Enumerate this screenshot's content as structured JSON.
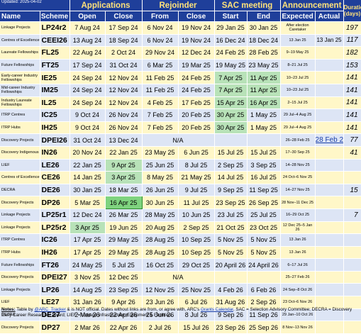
{
  "header": {
    "updated": "Updated: 2025-04-02",
    "groups": {
      "applications": "Applications",
      "rejoinder": "Rejoinder",
      "sac": "SAC meeting",
      "announcement": "Announcement",
      "duration": "Duration (days)"
    },
    "cols": {
      "name": "Name",
      "scheme": "Scheme",
      "open": "Open",
      "close": "Close",
      "rej_from": "From",
      "rej_close": "Close",
      "start": "Start",
      "end": "End",
      "expected": "Expected",
      "actual": "Actual"
    }
  },
  "rows": [
    {
      "name": "Linkage Projects",
      "scheme": "LP24r2",
      "open": "7 Aug 24",
      "close": "17 Sep 24",
      "rf": "6 Nov 24",
      "rc": "19 Nov 24",
      "ss": "29 Jan 25",
      "se": "30 Jan 25",
      "exp": "After election Caretaker",
      "act": "",
      "dur": "197"
    },
    {
      "name": "Centres of Excellence",
      "scheme": "CEEI26",
      "open": "13 Aug 24",
      "close": "18 Sep 24",
      "rf": "6 Nov 24",
      "rc": "19 Nov 24",
      "ss": "16 Dec 24",
      "se": "18 Dec 24",
      "exp": "13 Jan 25",
      "act": "13 Jan 25",
      "dur": "117"
    },
    {
      "name": "Laureate Fellowships",
      "scheme": "FL25",
      "open": "22 Aug 24",
      "close": "2 Oct 24",
      "rf": "29 Nov 24",
      "rc": "12 Dec 24",
      "ss": "24 Feb 25",
      "se": "28 Feb 25",
      "exp": "9–19 May 25",
      "act": "",
      "dur": "182"
    },
    {
      "name": "Future Fellowships",
      "scheme": "FT25",
      "open": "17 Sep 24",
      "close": "31 Oct 24",
      "rf": "6 Mar 25",
      "rc": "19 Mar 25",
      "ss": "19 May 25",
      "se": "23 May 25",
      "exp": "8–21 Jul 25",
      "act": "",
      "dur": "153"
    },
    {
      "name": "Early-career Industry Fellowships",
      "scheme": "IE25",
      "open": "24 Sep 24",
      "close": "12 Nov 24",
      "rf": "11 Feb 25",
      "rc": "24 Feb 25",
      "ss": "7 Apr 25",
      "se": "11 Apr 25",
      "exp": "10–23 Jul 25",
      "act": "",
      "dur": "141"
    },
    {
      "name": "Mid-career Industry Fellowships",
      "scheme": "IM25",
      "open": "24 Sep 24",
      "close": "12 Nov 24",
      "rf": "11 Feb 25",
      "rc": "24 Feb 25",
      "ss": "7 Apr 25",
      "se": "11 Apr 25",
      "exp": "10–23 Jul 25",
      "act": "",
      "dur": "141"
    },
    {
      "name": "Industry Laureate Fellowships",
      "scheme": "IL25",
      "open": "24 Sep 24",
      "close": "12 Nov 24",
      "rf": "4 Feb 25",
      "rc": "17 Feb 25",
      "ss": "15 Apr 25",
      "se": "16 Apr 25",
      "exp": "2–15 Jul 25",
      "act": "",
      "dur": "141"
    },
    {
      "name": "ITRP Centres",
      "scheme": "IC25",
      "open": "9 Oct 24",
      "close": "26 Nov 24",
      "rf": "7 Feb 25",
      "rc": "20 Feb 25",
      "ss": "30 Apr 25",
      "se": "1 May 25",
      "exp": "29 Jul–4 Aug 25",
      "act": "",
      "dur": "141"
    },
    {
      "name": "ITRP Hubs",
      "scheme": "IH25",
      "open": "9 Oct 24",
      "close": "26 Nov 24",
      "rf": "7 Feb 25",
      "rc": "20 Feb 25",
      "ss": "30 Apr 25",
      "se": "1 May 25",
      "exp": "29 Jul–4 Aug 25",
      "act": "",
      "dur": "141"
    },
    {
      "name": "Discovery Projects",
      "scheme": "DPEI26",
      "open": "31 Oct 24",
      "close": "13 Dec 24",
      "rejna": "N/A",
      "ss": "",
      "se": "",
      "exp": "26–28 Feb 25",
      "act": "28 Feb 25",
      "dur": "77"
    },
    {
      "name": "Discovery Indigenous",
      "scheme": "IN26",
      "open": "20 Nov 24",
      "close": "22 Jan 25",
      "rf": "23 May 25",
      "rc": "6 Jun 25",
      "ss": "15 Jul 25",
      "se": "15 Jul 25",
      "exp": "17–30 Sep 25",
      "act": "",
      "dur": "41"
    },
    {
      "name": "LIEF",
      "scheme": "LE26",
      "open": "22 Jan 25",
      "close": "9 Apr 25",
      "rf": "25 Jun 25",
      "rc": "8 Jul 25",
      "ss": "2 Sep 25",
      "se": "3 Sep 25",
      "exp": "14–28 Nov 25",
      "act": "",
      "dur": ""
    },
    {
      "name": "Centres of Excellence",
      "scheme": "CE26",
      "open": "14 Jan 25",
      "close": "3 Apr 25",
      "rf": "8 May 25",
      "rc": "21 May 25",
      "ss": "14 Jul 25",
      "se": "16 Jul 25",
      "exp": "24 Oct–6 Nov 25",
      "act": "",
      "dur": ""
    },
    {
      "name": "DECRA",
      "scheme": "DE26",
      "open": "30 Jan 25",
      "close": "18 Mar 25",
      "rf": "26 Jun 25",
      "rc": "9 Jul 25",
      "ss": "9 Sep 25",
      "se": "11 Sep 25",
      "exp": "14–27 Nov 25",
      "act": "",
      "dur": "15"
    },
    {
      "name": "Discovery Projects",
      "scheme": "DP26",
      "open": "5 Mar 25",
      "close": "16 Apr 25",
      "rf": "30 Jun 25",
      "rc": "11 Jul 25",
      "ss": "23 Sep 25",
      "se": "26 Sep 25",
      "exp": "28 Nov–11 Dec 25",
      "act": "",
      "dur": ""
    },
    {
      "name": "Linkage Projects",
      "scheme": "LP25r1",
      "open": "12 Dec 24",
      "close": "26 Mar 25",
      "rf": "28 May 25",
      "rc": "10 Jun 25",
      "ss": "23 Jul 25",
      "se": "25 Jul 25",
      "exp": "16–29 Oct 25",
      "act": "",
      "dur": "7"
    },
    {
      "name": "Linkage Projects",
      "scheme": "LP25r2",
      "open": "3 Apr 25",
      "close": "19 Jun 25",
      "rf": "20 Aug 25",
      "rc": "2 Sep 25",
      "ss": "21 Oct 25",
      "se": "23 Oct 25",
      "exp": "12 Dec 25–5 Jan 26",
      "act": "",
      "dur": ""
    },
    {
      "name": "ITRP Centres",
      "scheme": "IC26",
      "open": "17 Apr 25",
      "close": "29 May 25",
      "rf": "28 Aug 25",
      "rc": "10 Sep 25",
      "ss": "5 Nov 25",
      "se": "5 Nov 25",
      "exp": "13 Jan 26",
      "act": "",
      "dur": ""
    },
    {
      "name": "ITRP Hubs",
      "scheme": "IH26",
      "open": "17 Apr 25",
      "close": "29 May 25",
      "rf": "28 Aug 25",
      "rc": "10 Sep 25",
      "ss": "5 Nov 25",
      "se": "5 Nov 25",
      "exp": "13 Jan 26",
      "act": "",
      "dur": ""
    },
    {
      "name": "Future Fellowships",
      "scheme": "FT26",
      "open": "24 May 25",
      "close": "5 Jul 25",
      "rf": "16 Oct 25",
      "rc": "29 Oct 25",
      "ss": "20 April 26",
      "se": "24 April 26",
      "exp": "6–17 Jul 26",
      "act": "",
      "dur": ""
    },
    {
      "name": "Discovery Projects",
      "scheme": "DPEI27",
      "open": "3 Nov 25",
      "close": "12 Dec 25",
      "rejna": "N/A",
      "ss": "",
      "se": "",
      "exp": "25–27 Feb 26",
      "act": "",
      "dur": ""
    },
    {
      "name": "Linkage Projects",
      "scheme": "LP26",
      "open": "14 Aug 25",
      "close": "23 Sep 25",
      "rf": "12 Nov 25",
      "rc": "25 Nov 25",
      "ss": "4 Feb 26",
      "se": "6 Feb 26",
      "exp": "24 Sep–8 Oct 26",
      "act": "",
      "dur": ""
    },
    {
      "name": "LIEF",
      "scheme": "LE27",
      "open": "31 Jan 26",
      "close": "9 Apr 26",
      "rf": "23 Jun 26",
      "rc": "6 Jul 26",
      "ss": "31 Aug 26",
      "se": "2 Sep 26",
      "exp": "23 Oct–6 Nov 26",
      "act": "",
      "dur": ""
    },
    {
      "name": "DECRA",
      "scheme": "DE27",
      "open": "2 Mar 26",
      "close": "22 Apr 26",
      "rf": "25 Jun 26",
      "rc": "8 Jul 26",
      "ss": "9 Sep 26",
      "se": "11 Sep 26",
      "exp": "29 Jan–10 Oct 26",
      "act": "",
      "dur": ""
    },
    {
      "name": "Discovery Projects",
      "scheme": "DP27",
      "open": "2 Mar 26",
      "close": "22 Apr 26",
      "rf": "2 Jul 26",
      "rc": "15 Jul 26",
      "ss": "23 Sep 26",
      "se": "25 Sep 26",
      "exp": "8 Nov–13 Nov 26",
      "act": "",
      "dur": ""
    }
  ],
  "notes": {
    "label": "Notes:",
    "t1": " Table by ",
    "handle": "@ARC_Tracker",
    "t2": " & is NOT official. Dates without links are from, or agree with, ARC's ",
    "link": "Grants Calendar",
    "t3": ". SAC = Selection Advisory Committee; DECRA = Discovery Early Career Researcher Award; LIEF = Linkage Infrastructure, Equipment & Facilities."
  },
  "colors": {
    "header": "#1f3f9a",
    "odd": "#fff7c8",
    "even": "#dde5f5",
    "highlight": "#b8e2b8",
    "highlight_strong": "#7fd37f"
  }
}
